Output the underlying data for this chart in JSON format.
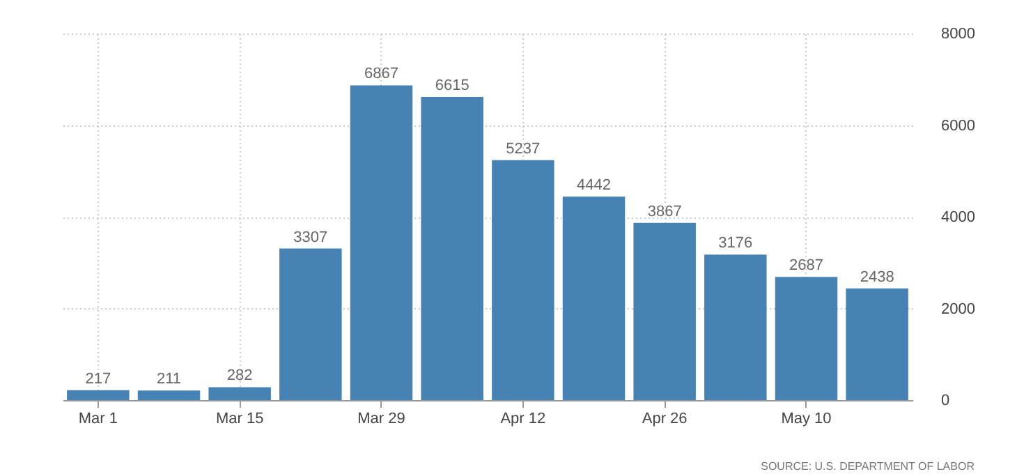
{
  "chart_data": {
    "type": "bar",
    "categories": [
      "Mar 1",
      null,
      "Mar 15",
      null,
      "Mar 29",
      null,
      "Apr 12",
      null,
      "Apr 26",
      null,
      "May 10",
      null
    ],
    "values": [
      217,
      211,
      282,
      3307,
      6867,
      6615,
      5237,
      4442,
      3867,
      3176,
      2687,
      2438
    ],
    "color": "#4682b4",
    "ylim": [
      0,
      8000
    ],
    "yticks": [
      0,
      2000,
      4000,
      6000,
      8000
    ],
    "grid": true,
    "data_labels": true,
    "annotations": [
      "SOURCE: U.S. DEPARTMENT OF LABOR"
    ]
  }
}
